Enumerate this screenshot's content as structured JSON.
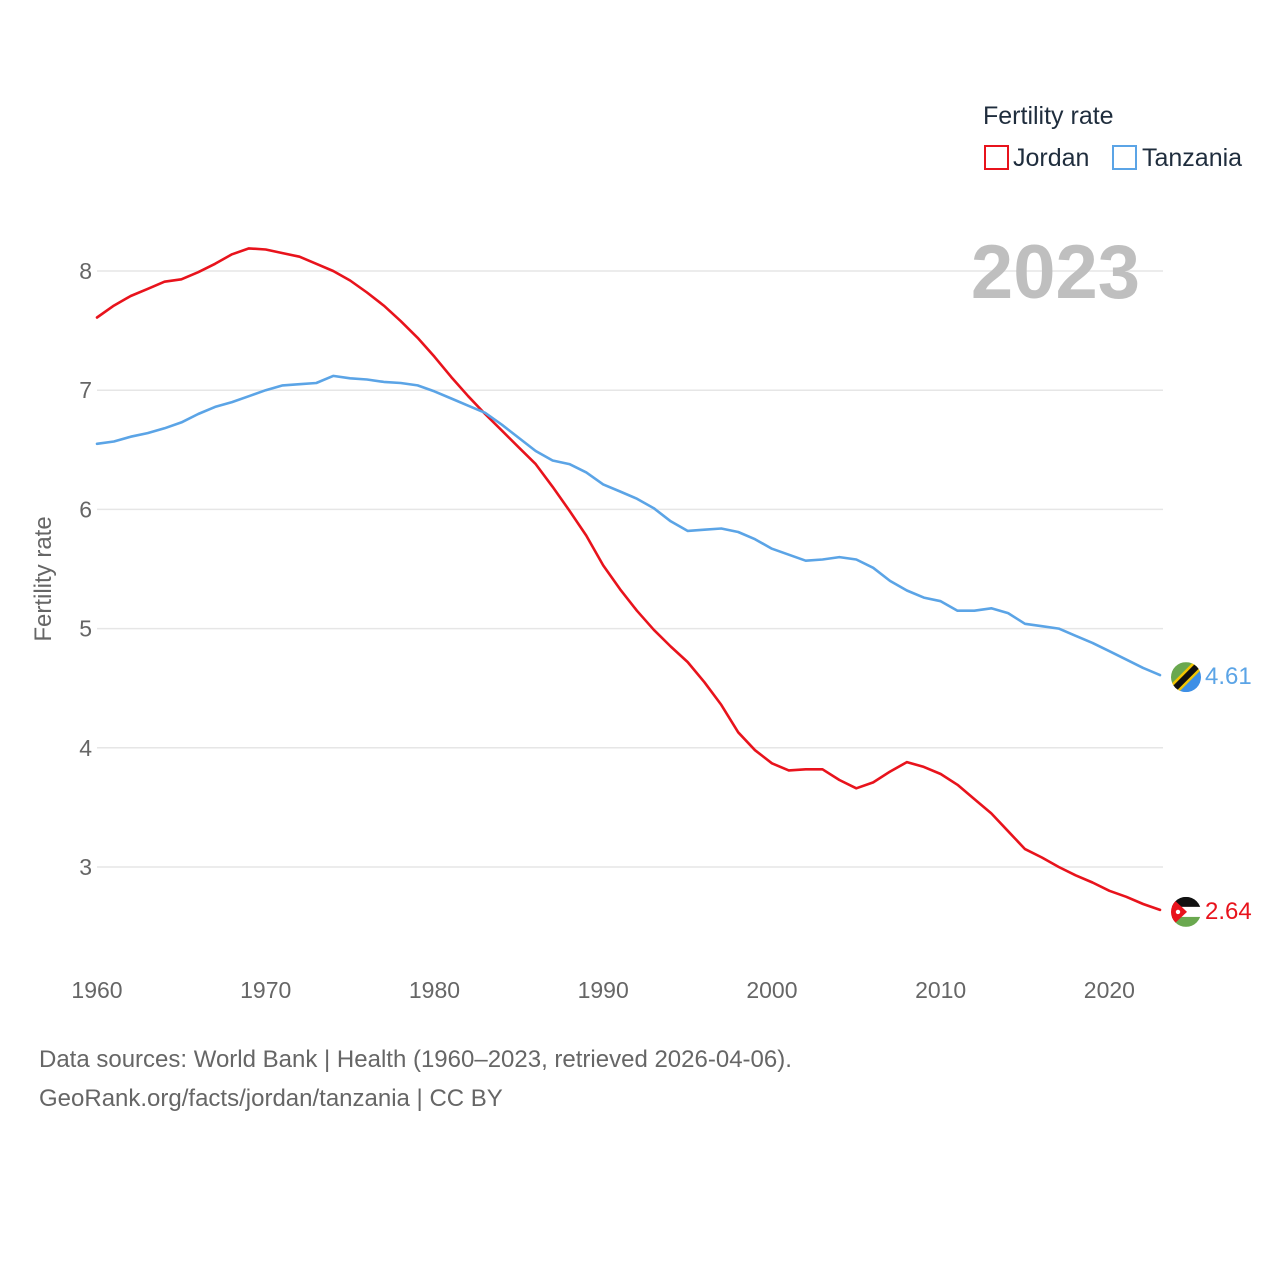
{
  "chart_data": {
    "type": "line",
    "title": "",
    "legend_title": "Fertility rate",
    "ylabel": "Fertility rate",
    "xlabel": "",
    "year_label": "2023",
    "xlim": [
      1960,
      2023
    ],
    "ylim": [
      2.3,
      8.5
    ],
    "x_ticks": [
      1960,
      1970,
      1980,
      1990,
      2000,
      2010,
      2020
    ],
    "y_ticks": [
      3,
      4,
      5,
      6,
      7,
      8
    ],
    "grid": true,
    "legend_position": "top-right",
    "x": [
      1960,
      1961,
      1962,
      1963,
      1964,
      1965,
      1966,
      1967,
      1968,
      1969,
      1970,
      1971,
      1972,
      1973,
      1974,
      1975,
      1976,
      1977,
      1978,
      1979,
      1980,
      1981,
      1982,
      1983,
      1984,
      1985,
      1986,
      1987,
      1988,
      1989,
      1990,
      1991,
      1992,
      1993,
      1994,
      1995,
      1996,
      1997,
      1998,
      1999,
      2000,
      2001,
      2002,
      2003,
      2004,
      2005,
      2006,
      2007,
      2008,
      2009,
      2010,
      2011,
      2012,
      2013,
      2014,
      2015,
      2016,
      2017,
      2018,
      2019,
      2020,
      2021,
      2022,
      2023
    ],
    "series": [
      {
        "name": "Jordan",
        "color": "#e8131c",
        "end_label": "2.64",
        "flag": "jordan-flag",
        "values": [
          7.61,
          7.71,
          7.79,
          7.85,
          7.91,
          7.93,
          7.99,
          8.06,
          8.14,
          8.19,
          8.18,
          8.15,
          8.12,
          8.06,
          8.0,
          7.92,
          7.82,
          7.71,
          7.58,
          7.44,
          7.28,
          7.11,
          6.95,
          6.8,
          6.66,
          6.52,
          6.38,
          6.19,
          5.99,
          5.78,
          5.53,
          5.33,
          5.15,
          4.99,
          4.85,
          4.72,
          4.55,
          4.36,
          4.13,
          3.98,
          3.87,
          3.81,
          3.82,
          3.82,
          3.73,
          3.66,
          3.71,
          3.8,
          3.88,
          3.84,
          3.78,
          3.69,
          3.57,
          3.45,
          3.3,
          3.15,
          3.08,
          3.0,
          2.93,
          2.87,
          2.8,
          2.75,
          2.69,
          2.64
        ]
      },
      {
        "name": "Tanzania",
        "color": "#5ba4e6",
        "end_label": "4.61",
        "flag": "tanzania-flag",
        "values": [
          6.55,
          6.57,
          6.61,
          6.64,
          6.68,
          6.73,
          6.8,
          6.86,
          6.9,
          6.95,
          7.0,
          7.04,
          7.05,
          7.06,
          7.12,
          7.1,
          7.09,
          7.07,
          7.06,
          7.04,
          6.99,
          6.93,
          6.87,
          6.81,
          6.71,
          6.6,
          6.49,
          6.41,
          6.38,
          6.31,
          6.21,
          6.15,
          6.09,
          6.01,
          5.9,
          5.82,
          5.83,
          5.84,
          5.81,
          5.75,
          5.67,
          5.62,
          5.57,
          5.58,
          5.6,
          5.58,
          5.51,
          5.4,
          5.32,
          5.26,
          5.23,
          5.15,
          5.15,
          5.17,
          5.13,
          5.04,
          5.02,
          5.0,
          4.94,
          4.88,
          4.81,
          4.74,
          4.67,
          4.61
        ]
      }
    ]
  },
  "footer": {
    "sources": "Data sources: World Bank | Health (1960–2023, retrieved 2026-04-06).",
    "link": "GeoRank.org/facts/jordan/tanzania | CC BY"
  }
}
